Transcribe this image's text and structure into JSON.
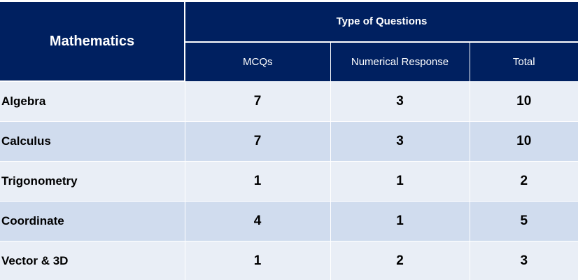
{
  "table": {
    "subject_header": "Mathematics",
    "group_header": "Type of Questions",
    "columns": [
      "MCQs",
      "Numerical Response",
      "Total"
    ],
    "rows": [
      {
        "topic": "Algebra",
        "mcqs": "7",
        "numerical": "3",
        "total": "10"
      },
      {
        "topic": "Calculus",
        "mcqs": "7",
        "numerical": "3",
        "total": "10"
      },
      {
        "topic": "Trigonometry",
        "mcqs": "1",
        "numerical": "1",
        "total": "2"
      },
      {
        "topic": "Coordinate",
        "mcqs": "4",
        "numerical": "1",
        "total": "5"
      },
      {
        "topic": "Vector & 3D",
        "mcqs": "1",
        "numerical": "2",
        "total": "3"
      }
    ]
  },
  "colors": {
    "header_bg": "#002060",
    "header_text": "#ffffff",
    "row_light": "#e9eef6",
    "row_dark": "#d0dcee"
  }
}
